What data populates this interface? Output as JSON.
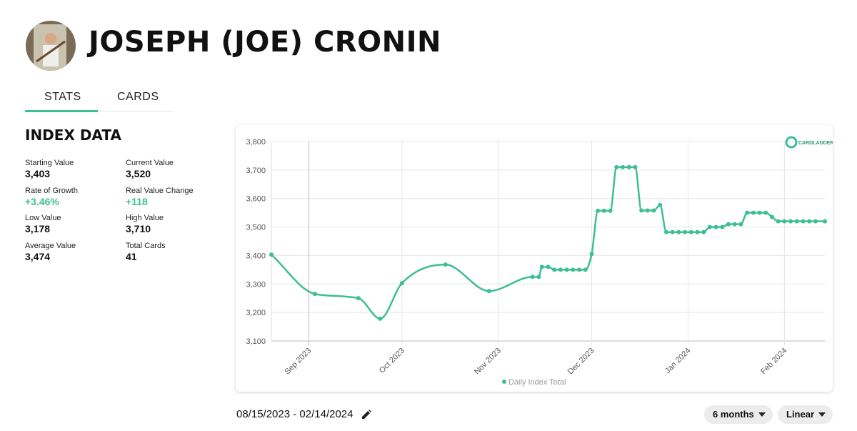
{
  "header": {
    "title": "JOSEPH (JOE) CRONIN"
  },
  "tabs": [
    "STATS",
    "CARDS"
  ],
  "index_data": {
    "title": "INDEX DATA",
    "stats": [
      {
        "label": "Starting Value",
        "value": "3,403"
      },
      {
        "label": "Current Value",
        "value": "3,520"
      },
      {
        "label": "Rate of Growth",
        "value": "+3.46%"
      },
      {
        "label": "Real Value Change",
        "value": "+118"
      },
      {
        "label": "Low Value",
        "value": "3,178"
      },
      {
        "label": "High Value",
        "value": "3,710"
      },
      {
        "label": "Average Value",
        "value": "3,474"
      },
      {
        "label": "Total Cards",
        "value": "41"
      }
    ]
  },
  "chart_data": {
    "type": "line",
    "logo": "CARDLADDER",
    "x": [
      "2023-08-20",
      "2023-09-03",
      "2023-09-17",
      "2023-09-24",
      "2023-10-01",
      "2023-10-15",
      "2023-10-29",
      "2023-11-12",
      "2023-11-14",
      "2023-11-15",
      "2023-11-17",
      "2023-11-19",
      "2023-11-21",
      "2023-11-23",
      "2023-11-25",
      "2023-11-27",
      "2023-11-29",
      "2023-12-01",
      "2023-12-03",
      "2023-12-05",
      "2023-12-07",
      "2023-12-09",
      "2023-12-11",
      "2023-12-13",
      "2023-12-15",
      "2023-12-17",
      "2023-12-19",
      "2023-12-21",
      "2023-12-23",
      "2023-12-25",
      "2023-12-27",
      "2023-12-29",
      "2023-12-31",
      "2024-01-02",
      "2024-01-04",
      "2024-01-06",
      "2024-01-08",
      "2024-01-10",
      "2024-01-12",
      "2024-01-14",
      "2024-01-16",
      "2024-01-18",
      "2024-01-20",
      "2024-01-22",
      "2024-01-24",
      "2024-01-26",
      "2024-01-28",
      "2024-01-30",
      "2024-02-01",
      "2024-02-03",
      "2024-02-05",
      "2024-02-07",
      "2024-02-09",
      "2024-02-11",
      "2024-02-14"
    ],
    "series": [
      {
        "name": "Daily Index Total",
        "color": "#3dbf8f",
        "values": [
          3403,
          3265,
          3250,
          3178,
          3303,
          3368,
          3275,
          3325,
          3325,
          3360,
          3360,
          3350,
          3350,
          3350,
          3350,
          3350,
          3350,
          3405,
          3557,
          3557,
          3557,
          3710,
          3710,
          3710,
          3710,
          3558,
          3558,
          3558,
          3577,
          3482,
          3482,
          3482,
          3482,
          3482,
          3482,
          3482,
          3500,
          3500,
          3500,
          3510,
          3510,
          3510,
          3550,
          3550,
          3550,
          3550,
          3535,
          3520,
          3520,
          3520,
          3520,
          3520,
          3520,
          3520,
          3520
        ]
      }
    ],
    "xlim": [
      "2023-08-20",
      "2024-02-14"
    ],
    "xticks": [
      {
        "value": "2023-09-01",
        "label": "Sep 2023"
      },
      {
        "value": "2023-10-01",
        "label": "Oct 2023"
      },
      {
        "value": "2023-11-01",
        "label": "Nov 2023"
      },
      {
        "value": "2023-12-01",
        "label": "Dec 2023"
      },
      {
        "value": "2024-01-01",
        "label": "Jan 2024"
      },
      {
        "value": "2024-02-01",
        "label": "Feb 2024"
      }
    ],
    "ylim": [
      3100,
      3800
    ],
    "yticks": [
      {
        "value": 3100,
        "label": "3,100"
      },
      {
        "value": 3200,
        "label": "3,200"
      },
      {
        "value": 3300,
        "label": "3,300"
      },
      {
        "value": 3400,
        "label": "3,400"
      },
      {
        "value": 3500,
        "label": "3,500"
      },
      {
        "value": 3600,
        "label": "3,600"
      },
      {
        "value": 3700,
        "label": "3,700"
      },
      {
        "value": 3800,
        "label": "3,800"
      }
    ],
    "grid": true,
    "legend": "bottom"
  },
  "footer": {
    "date_range": "08/15/2023 - 02/14/2024",
    "period": "6 months",
    "scale": "Linear"
  }
}
